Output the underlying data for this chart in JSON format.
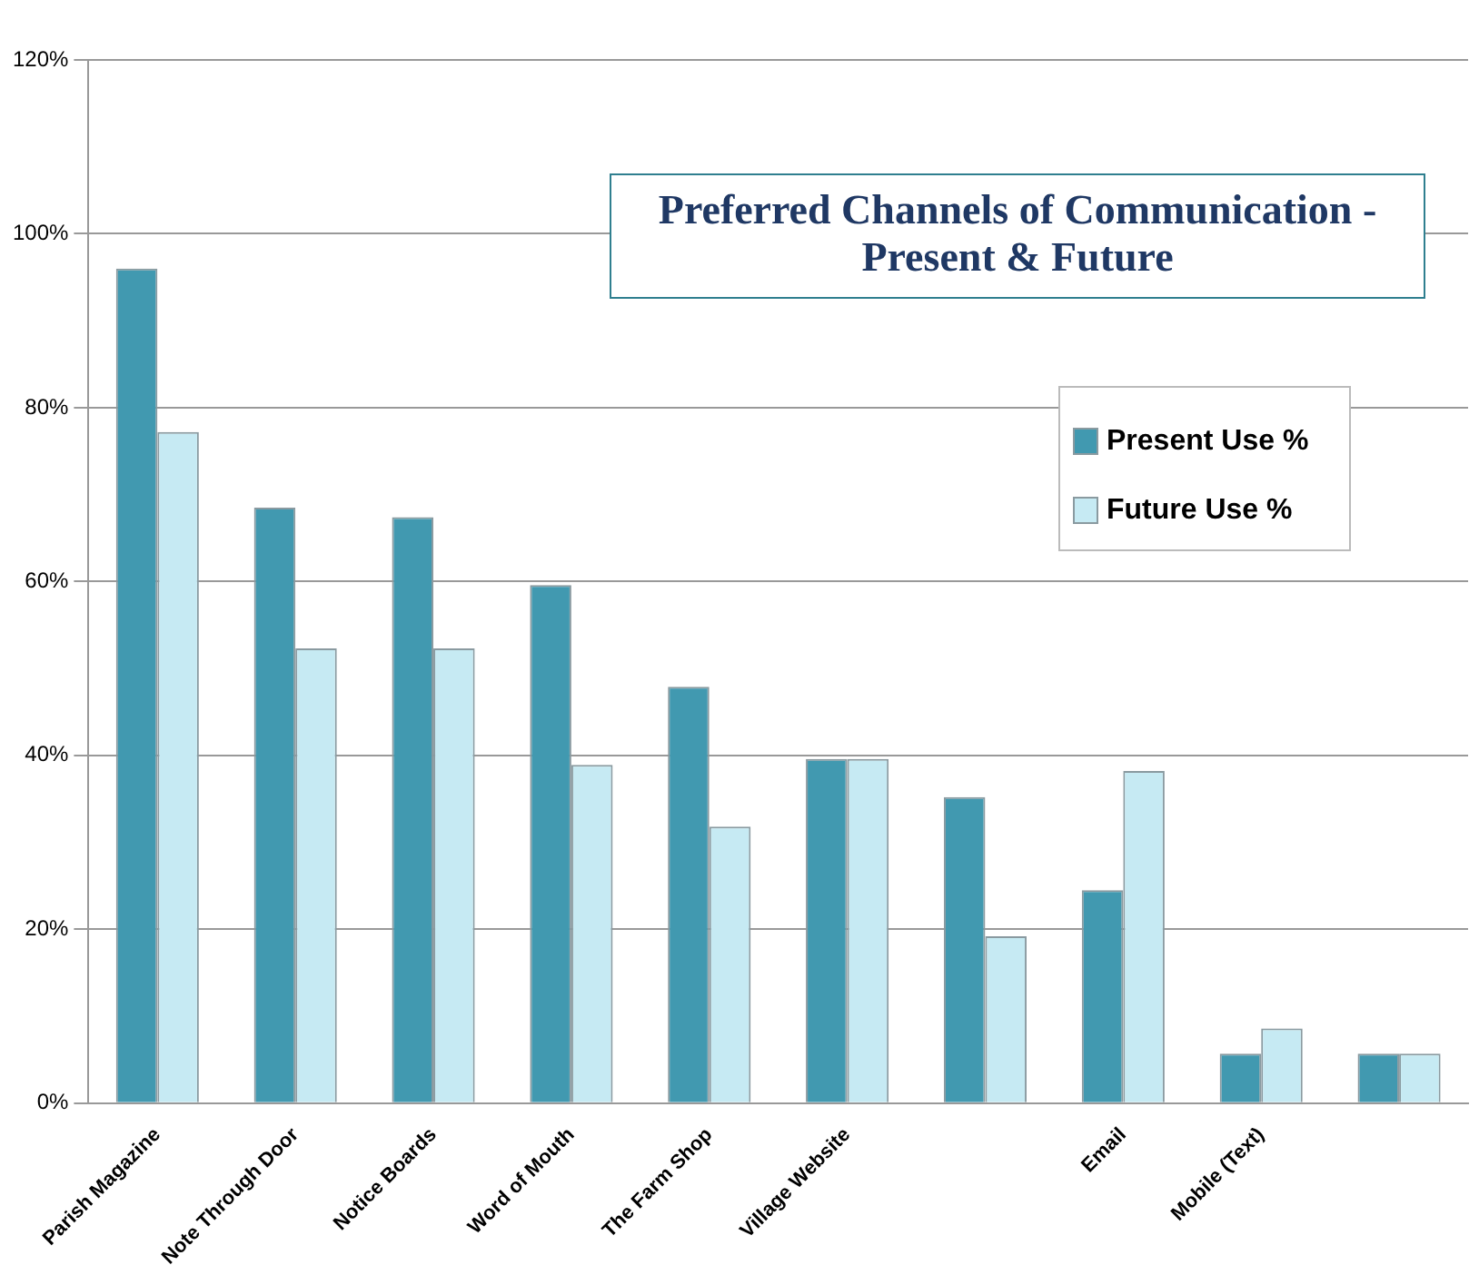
{
  "chart_data": {
    "type": "bar",
    "title": "Preferred Channels of Communication - Present & Future",
    "categories": [
      "Parish Magazine",
      "Note Through Door",
      "Notice Boards",
      "Word of Mouth",
      "The Farm Shop",
      "Village Website",
      null,
      "Email",
      "Mobile (Text)",
      null
    ],
    "series": [
      {
        "name": "Present Use %",
        "color": "#4199b0",
        "values": [
          96,
          68.5,
          67.4,
          59.6,
          47.9,
          39.6,
          35.2,
          24.5,
          5.7,
          5.7
        ]
      },
      {
        "name": "Future Use %",
        "color": "#c6eaf3",
        "values": [
          77.2,
          52.3,
          52.3,
          38.9,
          31.8,
          39.6,
          19.2,
          38.2,
          8.6,
          5.7
        ]
      }
    ],
    "ylim": [
      0,
      120
    ],
    "yticks": [
      {
        "value": 0,
        "label": "0%"
      },
      {
        "value": 20,
        "label": "20%"
      },
      {
        "value": 40,
        "label": "40%"
      },
      {
        "value": 60,
        "label": "60%"
      },
      {
        "value": 80,
        "label": "80%"
      },
      {
        "value": 100,
        "label": "100%"
      },
      {
        "value": 120,
        "label": "120%"
      }
    ],
    "grid": "y",
    "legend": "top right"
  }
}
